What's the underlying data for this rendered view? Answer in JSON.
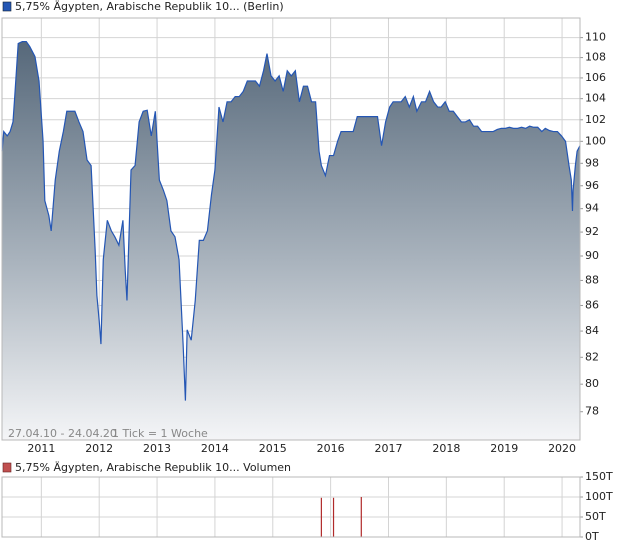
{
  "chart_data": [
    {
      "type": "area",
      "title": "5,75% Ägypten, Arabische Republik 10... (Berlin)",
      "date_range": "27.04.10 - 24.04.20",
      "note": "1 Tick = 1 Woche",
      "color": "#2456b4",
      "log": true,
      "grid": true,
      "xlim": [
        2010.32,
        2020.31
      ],
      "xticks": [
        2011,
        2012,
        2013,
        2014,
        2015,
        2016,
        2017,
        2018,
        2019,
        2020
      ],
      "ylim": [
        76,
        112
      ],
      "yticks": [
        78,
        80,
        82,
        84,
        86,
        88,
        90,
        92,
        94,
        96,
        98,
        100,
        102,
        104,
        106,
        108,
        110
      ],
      "x": [
        2010.32,
        2010.35,
        2010.41,
        2010.46,
        2010.51,
        2010.54,
        2010.6,
        2010.67,
        2010.74,
        2010.8,
        2010.89,
        2010.96,
        2011.03,
        2011.06,
        2011.13,
        2011.17,
        2011.24,
        2011.31,
        2011.38,
        2011.44,
        2011.51,
        2011.58,
        2011.65,
        2011.72,
        2011.79,
        2011.86,
        2011.93,
        2011.96,
        2012.0,
        2012.03,
        2012.07,
        2012.14,
        2012.21,
        2012.27,
        2012.34,
        2012.41,
        2012.45,
        2012.48,
        2012.55,
        2012.62,
        2012.69,
        2012.76,
        2012.83,
        2012.9,
        2012.97,
        2013.04,
        2013.11,
        2013.17,
        2013.24,
        2013.31,
        2013.38,
        2013.45,
        2013.49,
        2013.52,
        2013.59,
        2013.66,
        2013.73,
        2013.8,
        2013.87,
        2013.94,
        2014.0,
        2014.07,
        2014.14,
        2014.21,
        2014.28,
        2014.35,
        2014.42,
        2014.49,
        2014.56,
        2014.63,
        2014.7,
        2014.77,
        2014.84,
        2014.9,
        2014.97,
        2015.04,
        2015.11,
        2015.18,
        2015.25,
        2015.32,
        2015.39,
        2015.46,
        2015.53,
        2015.6,
        2015.67,
        2015.74,
        2015.8,
        2015.84,
        2015.91,
        2015.98,
        2016.05,
        2016.12,
        2016.18,
        2016.25,
        2016.32,
        2016.39,
        2016.46,
        2016.53,
        2016.6,
        2016.67,
        2016.74,
        2016.81,
        2016.88,
        2016.95,
        2017.02,
        2017.08,
        2017.15,
        2017.22,
        2017.29,
        2017.36,
        2017.43,
        2017.49,
        2017.57,
        2017.64,
        2017.71,
        2017.78,
        2017.85,
        2017.91,
        2017.98,
        2018.05,
        2018.12,
        2018.19,
        2018.26,
        2018.33,
        2018.4,
        2018.47,
        2018.54,
        2018.61,
        2018.68,
        2018.74,
        2018.81,
        2018.88,
        2018.95,
        2019.02,
        2019.09,
        2019.16,
        2019.23,
        2019.3,
        2019.37,
        2019.44,
        2019.51,
        2019.58,
        2019.65,
        2019.71,
        2019.78,
        2019.85,
        2019.92,
        2019.99,
        2020.06,
        2020.12,
        2020.16,
        2020.18,
        2020.19,
        2020.23,
        2020.26,
        2020.31
      ],
      "values": [
        99.1,
        100.9,
        100.5,
        100.9,
        101.8,
        104.2,
        109.4,
        109.6,
        109.6,
        109.1,
        108.1,
        105.7,
        100,
        94.7,
        93.4,
        92.1,
        96.5,
        99.1,
        100.9,
        102.8,
        102.8,
        102.8,
        101.8,
        100.9,
        98.3,
        97.8,
        90.5,
        86.8,
        84.8,
        83.0,
        89.7,
        93.0,
        92.1,
        91.6,
        90.9,
        93.0,
        88.8,
        86.4,
        97.4,
        97.8,
        101.8,
        102.8,
        102.9,
        100.5,
        102.8,
        96.5,
        95.6,
        94.7,
        92.1,
        91.6,
        89.7,
        83.0,
        78.8,
        84.1,
        83.3,
        86.4,
        91.3,
        91.3,
        92.1,
        95.2,
        97.4,
        103.2,
        101.8,
        103.7,
        103.7,
        104.2,
        104.2,
        104.7,
        105.7,
        105.7,
        105.7,
        105.2,
        106.7,
        108.4,
        106.2,
        105.7,
        106.2,
        104.7,
        106.7,
        106.2,
        106.7,
        103.7,
        105.2,
        105.2,
        103.7,
        103.7,
        99.1,
        97.8,
        96.9,
        98.7,
        98.7,
        100,
        100.9,
        100.9,
        100.9,
        100.9,
        102.3,
        102.3,
        102.3,
        102.3,
        102.3,
        102.3,
        99.6,
        101.8,
        103.2,
        103.7,
        103.7,
        103.7,
        104.2,
        103.2,
        104.2,
        102.8,
        103.7,
        103.7,
        104.7,
        103.7,
        103.2,
        103.2,
        103.7,
        102.8,
        102.8,
        102.3,
        101.8,
        101.8,
        102.0,
        101.4,
        101.4,
        100.9,
        100.9,
        100.9,
        100.9,
        101.1,
        101.2,
        101.2,
        101.3,
        101.2,
        101.2,
        101.3,
        101.2,
        101.4,
        101.3,
        101.3,
        100.9,
        101.2,
        101.0,
        100.9,
        100.9,
        100.5,
        100,
        97.8,
        96.5,
        93.8,
        95.6,
        97.8,
        99.1,
        99.6
      ]
    },
    {
      "type": "bar",
      "title": "5,75% Ägypten, Arabische Republik 10... Volumen",
      "color": "#b02a2a",
      "grid": true,
      "xlim": [
        2010.32,
        2020.31
      ],
      "xticks": [
        2011,
        2012,
        2013,
        2014,
        2015,
        2016,
        2017,
        2018,
        2019,
        2020
      ],
      "ylim": [
        0,
        150000
      ],
      "yticks": [
        {
          "value": 0,
          "label": "0T"
        },
        {
          "value": 50000,
          "label": "50T"
        },
        {
          "value": 100000,
          "label": "100T"
        },
        {
          "value": 150000,
          "label": "150T"
        }
      ],
      "x": [
        2015.84,
        2016.05,
        2016.53
      ],
      "values": [
        98000,
        98000,
        100000
      ]
    }
  ]
}
